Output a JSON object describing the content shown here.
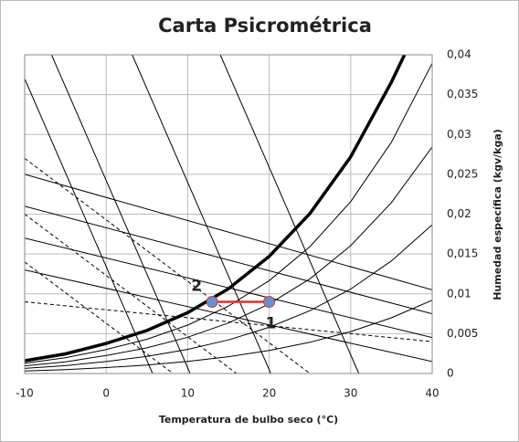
{
  "chart_data": {
    "type": "line",
    "title": "Carta Psicrométrica",
    "xlabel": "Temperatura de bulbo seco (°C)",
    "ylabel": "Humedad específica (kgv/kga)",
    "xlim": [
      -10,
      40
    ],
    "xticks": [
      -10,
      0,
      10,
      20,
      30,
      40
    ],
    "ylim": [
      0,
      0.04
    ],
    "yticks": [
      0,
      {
        "value": 0.005,
        "label": "0,005"
      },
      {
        "value": 0.01,
        "label": "0,01"
      },
      {
        "value": 0.015,
        "label": "0,015"
      },
      {
        "value": 0.02,
        "label": "0,02"
      },
      {
        "value": 0.025,
        "label": "0,025"
      },
      {
        "value": 0.03,
        "label": "0,03"
      },
      {
        "value": 0.035,
        "label": "0,035"
      },
      {
        "value": 0.04,
        "label": "0,04"
      }
    ],
    "grid": true,
    "series": [
      {
        "color": "#000000",
        "line_width": 3.5,
        "x": [
          -10,
          -5,
          0,
          5,
          10,
          15,
          20,
          25,
          30,
          35,
          36.6
        ],
        "values": [
          0.0016,
          0.00246,
          0.00377,
          0.0054,
          0.00763,
          0.01064,
          0.0147,
          0.02008,
          0.0272,
          0.03658,
          0.04
        ]
      },
      {
        "color": "#000000",
        "line_width": 1,
        "x": [
          -10,
          -5,
          0,
          5,
          10,
          15,
          20,
          25,
          30,
          35,
          40
        ],
        "values": [
          0.00128,
          0.00197,
          0.00301,
          0.0043,
          0.00607,
          0.00846,
          0.01166,
          0.01592,
          0.02157,
          0.02903,
          0.03893
        ]
      },
      {
        "color": "#000000",
        "line_width": 1,
        "x": [
          -10,
          -5,
          0,
          5,
          10,
          15,
          20,
          25,
          30,
          35,
          40
        ],
        "values": [
          0.00096,
          0.00147,
          0.00226,
          0.00322,
          0.00455,
          0.00634,
          0.00873,
          0.01188,
          0.01605,
          0.02145,
          0.02844
        ]
      },
      {
        "color": "#000000",
        "line_width": 1,
        "x": [
          -10,
          -5,
          0,
          5,
          10,
          15,
          20,
          25,
          30,
          35,
          40
        ],
        "values": [
          0.00064,
          0.00098,
          0.0015,
          0.00215,
          0.00303,
          0.00422,
          0.0058,
          0.00788,
          0.0106,
          0.01413,
          0.01867
        ]
      },
      {
        "color": "#000000",
        "line_width": 1,
        "x": [
          -10,
          -5,
          0,
          5,
          10,
          15,
          20,
          25,
          30,
          35,
          40
        ],
        "values": [
          0.00032,
          0.00049,
          0.00075,
          0.00107,
          0.00151,
          0.00211,
          0.00289,
          0.00392,
          0.00526,
          0.00699,
          0.0092
        ]
      },
      {
        "color": "#000000",
        "line_width": 1,
        "x": [
          -10,
          5.7
        ],
        "values": [
          0.037,
          0
        ]
      },
      {
        "color": "#000000",
        "line_width": 1,
        "x": [
          -6.7,
          10.3
        ],
        "values": [
          0.04,
          0
        ]
      },
      {
        "color": "#000000",
        "line_width": 1,
        "x": [
          3.2,
          20.2
        ],
        "values": [
          0.04,
          0
        ]
      },
      {
        "color": "#000000",
        "line_width": 1,
        "x": [
          14,
          31
        ],
        "values": [
          0.04,
          0
        ]
      },
      {
        "color": "#000000",
        "line_width": 1,
        "dashed": true,
        "x": [
          -10,
          25
        ],
        "values": [
          0.027,
          0
        ]
      },
      {
        "color": "#000000",
        "line_width": 1,
        "dashed": true,
        "x": [
          -10,
          16
        ],
        "values": [
          0.02,
          0
        ]
      },
      {
        "color": "#000000",
        "line_width": 1,
        "dashed": true,
        "x": [
          -10,
          8.2
        ],
        "values": [
          0.014,
          0
        ]
      },
      {
        "color": "#000000",
        "line_width": 1,
        "dashed": true,
        "x": [
          -10,
          40
        ],
        "values": [
          0.009,
          0.004
        ]
      },
      {
        "color": "#000000",
        "line_width": 1,
        "x": [
          -10,
          40
        ],
        "values": [
          0.025,
          0.0105
        ]
      },
      {
        "color": "#000000",
        "line_width": 1,
        "x": [
          -10,
          40
        ],
        "values": [
          0.021,
          0.0075
        ]
      },
      {
        "color": "#000000",
        "line_width": 1,
        "x": [
          -10,
          40
        ],
        "values": [
          0.017,
          0.0045
        ]
      },
      {
        "color": "#000000",
        "line_width": 1,
        "x": [
          -10,
          40
        ],
        "values": [
          0.013,
          0.0015
        ]
      }
    ],
    "process": {
      "color": "#e03030",
      "marker_color": "#6a8fd0",
      "x": [
        13,
        20
      ],
      "values": [
        0.009,
        0.009
      ],
      "labels": [
        "2",
        "1"
      ]
    }
  }
}
